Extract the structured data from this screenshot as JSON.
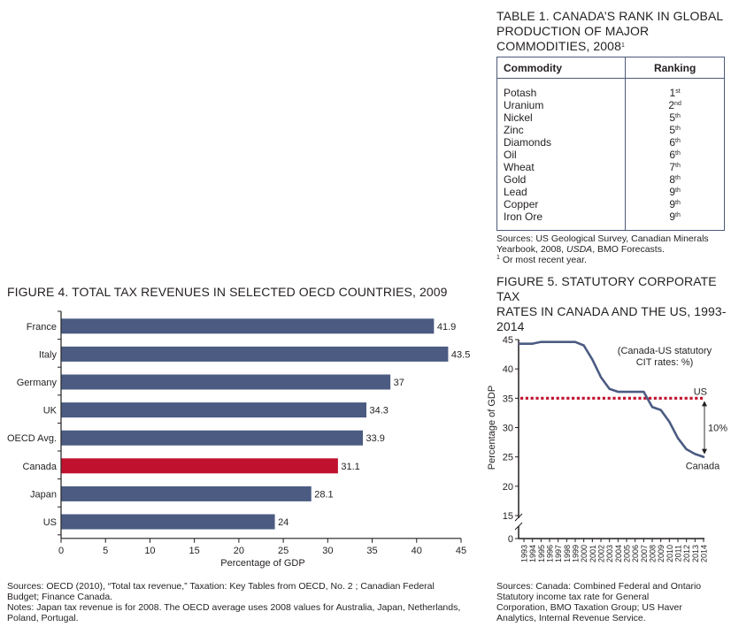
{
  "table1": {
    "title_lines": [
      "TABLE 1. CANADA’S RANK IN GLOBAL",
      "PRODUCTION OF MAJOR",
      "COMMODITIES, 2008"
    ],
    "title_footnote_mark": "1",
    "headers": [
      "Commodity",
      "Ranking"
    ],
    "rows": [
      {
        "commodity": "Potash",
        "rank": "1",
        "suffix": "st"
      },
      {
        "commodity": "Uranium",
        "rank": "2",
        "suffix": "nd"
      },
      {
        "commodity": "Nickel",
        "rank": "5",
        "suffix": "th"
      },
      {
        "commodity": "Zinc",
        "rank": "5",
        "suffix": "th"
      },
      {
        "commodity": "Diamonds",
        "rank": "6",
        "suffix": "th"
      },
      {
        "commodity": "Oil",
        "rank": "6",
        "suffix": "th"
      },
      {
        "commodity": "Wheat",
        "rank": "7",
        "suffix": "th"
      },
      {
        "commodity": "Gold",
        "rank": "8",
        "suffix": "th"
      },
      {
        "commodity": "Lead",
        "rank": "9",
        "suffix": "th"
      },
      {
        "commodity": "Copper",
        "rank": "9",
        "suffix": "th"
      },
      {
        "commodity": "Iron Ore",
        "rank": "9",
        "suffix": "th"
      }
    ],
    "sources_line1": "Sources: US Geological Survey, Canadian Minerals",
    "sources_line2_a": "Yearbook, 2008, ",
    "sources_line2_italic": "USDA",
    "sources_line2_b": ", BMO Forecasts.",
    "footnote_mark": "1",
    "footnote": " Or most recent year."
  },
  "figure4": {
    "sources_line1": "Sources: OECD (2010), “Total tax revenue,” Taxation: Key Tables from OECD, No. 2 ; Canadian Federal",
    "sources_line2": "Budget; Finance Canada.",
    "notes_line1": "Notes: Japan tax revenue is for 2008. The OECD average uses 2008 values for Australia, Japan, Netherlands,",
    "notes_line2": "Poland, Portugal."
  },
  "figure5": {
    "sources_lines": [
      "Sources: Canada: Combined Federal and Ontario",
      "Statutory income tax rate for General",
      "Corporation, BMO Taxation Group; US Haver",
      "Analytics, Internal Revenue Service."
    ]
  },
  "colors": {
    "bar": "#4b5b82",
    "highlight_bar": "#c0112f",
    "canada_line": "#4b5b82",
    "us_line": "#c0112f",
    "axis": "#231f20"
  },
  "chart_data": [
    {
      "type": "bar",
      "orientation": "horizontal",
      "title": "FIGURE 4. TOTAL TAX REVENUES IN SELECTED OECD COUNTRIES, 2009",
      "categories": [
        "France",
        "Italy",
        "Germany",
        "UK",
        "OECD Avg.",
        "Canada",
        "Japan",
        "US"
      ],
      "values": [
        41.9,
        43.5,
        37,
        34.3,
        33.9,
        31.1,
        28.1,
        24
      ],
      "value_labels": [
        "41.9",
        "43.5",
        "37",
        "34.3",
        "33.9",
        "31.1",
        "28.1",
        "24"
      ],
      "highlight": "Canada",
      "xlabel": "Percentage of GDP",
      "ylabel": "",
      "xlim": [
        0,
        45
      ],
      "xticks": [
        0,
        5,
        10,
        15,
        20,
        25,
        30,
        35,
        40,
        45
      ],
      "grid": false,
      "legend": "none"
    },
    {
      "type": "line",
      "title_lines": [
        "FIGURE 5. STATUTORY CORPORATE TAX",
        "RATES IN CANADA AND THE US, 1993-",
        "2014"
      ],
      "annotation": [
        "(Canada-US statutory",
        "CIT rates: %)"
      ],
      "x": [
        1993,
        1994,
        1995,
        1996,
        1997,
        1998,
        1999,
        2000,
        2001,
        2002,
        2003,
        2004,
        2005,
        2006,
        2007,
        2008,
        2009,
        2010,
        2011,
        2012,
        2013,
        2014
      ],
      "xtick_labels": [
        "1993",
        "1994",
        "1995",
        "1996",
        "1997",
        "1998",
        "1999",
        "2000",
        "2001",
        "2002",
        "2003",
        "2004",
        "2005",
        "2006",
        "2007",
        "2008",
        "2009",
        "2010",
        "2011",
        "2012",
        "2013",
        "2014"
      ],
      "series": [
        {
          "name": "Canada",
          "style": "solid",
          "values": [
            44.3,
            44.3,
            44.6,
            44.6,
            44.6,
            44.6,
            44.6,
            44.0,
            41.6,
            38.6,
            36.6,
            36.1,
            36.1,
            36.1,
            36.1,
            33.5,
            33.0,
            31.0,
            28.2,
            26.3,
            25.5,
            25.0
          ]
        },
        {
          "name": "US",
          "style": "dotted",
          "values": [
            35,
            35,
            35,
            35,
            35,
            35,
            35,
            35,
            35,
            35,
            35,
            35,
            35,
            35,
            35,
            35,
            35,
            35,
            35,
            35,
            35,
            35
          ]
        }
      ],
      "gap_annotation": "10%",
      "ylabel": "Percentage of GDP",
      "xlabel": "",
      "ylim": [
        0,
        45
      ],
      "yticks": [
        0,
        15,
        20,
        25,
        30,
        35,
        40,
        45
      ],
      "axis_break": "between 0 and 15",
      "grid": false,
      "legend": "inline labels"
    }
  ]
}
